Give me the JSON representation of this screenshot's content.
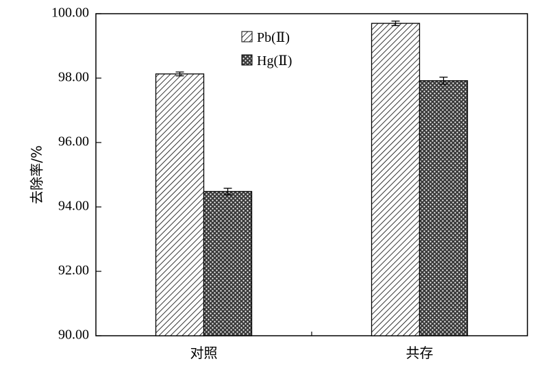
{
  "chart_data": {
    "type": "bar",
    "categories": [
      "对照",
      "共存"
    ],
    "series": [
      {
        "name": "Pb(Ⅱ)",
        "values": [
          98.13,
          99.7
        ],
        "errors": [
          0.06,
          0.07
        ],
        "pattern": "diagonal-hatch"
      },
      {
        "name": "Hg(Ⅱ)",
        "values": [
          94.48,
          97.92
        ],
        "errors": [
          0.1,
          0.11
        ],
        "pattern": "dotted-crosshatch"
      }
    ],
    "title": "",
    "xlabel": "",
    "ylabel": "去除率/%",
    "ylim": [
      90.0,
      100.0
    ],
    "yticks": [
      "90.00",
      "92.00",
      "94.00",
      "96.00",
      "98.00",
      "100.00"
    ],
    "legend_position": "top-center",
    "grid": false
  }
}
